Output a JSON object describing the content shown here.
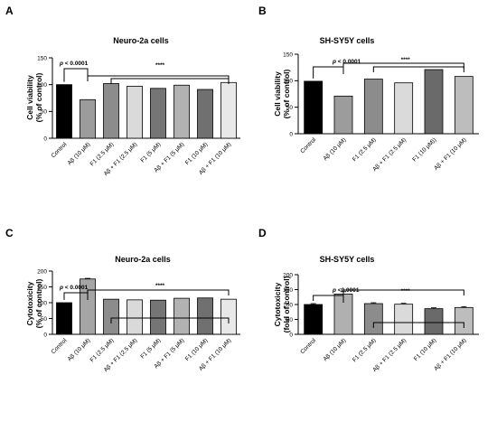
{
  "chart_data": [
    {
      "panel": "A",
      "type": "bar",
      "title": "Neuro-2a cells",
      "ylabel": "Cell viability\n(% of control)",
      "ylim": [
        0,
        150
      ],
      "yticks": [
        0,
        50,
        100,
        150
      ],
      "categories": [
        "Control",
        "Aβ (10 μM)",
        "F1 (2.5 μM)",
        "Aβ + F1 (2.5 μM)",
        "F1 (5 μM)",
        "Aβ + F1 (5 μM)",
        "F1 (10 μM)",
        "Aβ + F1 (10 μM)"
      ],
      "values": [
        100,
        72,
        102,
        97,
        93,
        99,
        91,
        104
      ],
      "errors": [
        0,
        0,
        0,
        0,
        0,
        0,
        0,
        0
      ],
      "colors": [
        "#000000",
        "#9c9c9c",
        "#8c8c8c",
        "#dadada",
        "#757575",
        "#b2b2b2",
        "#707070",
        "#e8e8e8"
      ],
      "annotations": {
        "p_label": "p < 0.0001",
        "stars": "****"
      },
      "grid": false
    },
    {
      "panel": "B",
      "type": "bar",
      "title": "SH-SY5Y cells",
      "ylabel": "Cell viability\n(% of control)",
      "ylim": [
        0,
        150
      ],
      "yticks": [
        0,
        50,
        100,
        150
      ],
      "categories": [
        "Control",
        "Aβ (10 μM)",
        "F1 (2.5 μM)",
        "Aβ + F1 (2.5 μM)",
        "F1 (10 μM))",
        "Aβ + F1 (10 μM)"
      ],
      "values": [
        99,
        71,
        103,
        96,
        121,
        108
      ],
      "errors": [
        0,
        0,
        0,
        0,
        0,
        0
      ],
      "colors": [
        "#000000",
        "#9c9c9c",
        "#8c8c8c",
        "#dadada",
        "#6a6a6a",
        "#bdbdbd"
      ],
      "annotations": {
        "p_label": "p < 0.0001",
        "stars": "****"
      },
      "grid": false
    },
    {
      "panel": "C",
      "type": "bar",
      "title": "Neuro-2a cells",
      "ylabel": "Cytotoxicity\n(% of control)",
      "ylim": [
        0,
        200
      ],
      "yticks": [
        0,
        50,
        100,
        150,
        200
      ],
      "categories": [
        "Control",
        "Aβ (10 μM)",
        "F1 (2.5 μM)",
        "Aβ + F1 (2.5 μM)",
        "F1 (5 μM)",
        "Aβ + F1 (5 μM)",
        "F1 (10 μM)",
        "Aβ + F1 (10 μM)"
      ],
      "values": [
        100,
        175,
        111,
        109,
        108,
        114,
        115,
        111
      ],
      "errors": [
        0,
        2,
        0,
        0,
        0,
        0,
        0,
        0
      ],
      "colors": [
        "#000000",
        "#a5a5a5",
        "#8c8c8c",
        "#dadada",
        "#757575",
        "#b2b2b2",
        "#707070",
        "#e8e8e8"
      ],
      "annotations": {
        "p_label": "p < 0.0001",
        "stars": "****"
      },
      "grid": false
    },
    {
      "panel": "D",
      "type": "bar",
      "title": "SH-SY5Y cells",
      "ylabel": "Cytotoxicity\n(fold of control)",
      "ylim": [
        0,
        200
      ],
      "yticks": [
        0,
        50,
        100,
        150,
        200
      ],
      "categories": [
        "Control",
        "Aβ (10 μM)",
        "F1 (2.5 μM)",
        "Aβ + F1 (2.5 μM)",
        "F1 (10 μM)",
        "Aβ + F1 (10 μM)"
      ],
      "values": [
        100,
        135,
        103,
        101,
        86,
        90
      ],
      "errors": [
        3,
        8,
        3,
        3,
        3,
        3
      ],
      "colors": [
        "#000000",
        "#b0b0b0",
        "#8c8c8c",
        "#dadada",
        "#6a6a6a",
        "#bdbdbd"
      ],
      "annotations": {
        "p_label": "p <0.0001",
        "stars": "****"
      },
      "grid": false
    }
  ]
}
